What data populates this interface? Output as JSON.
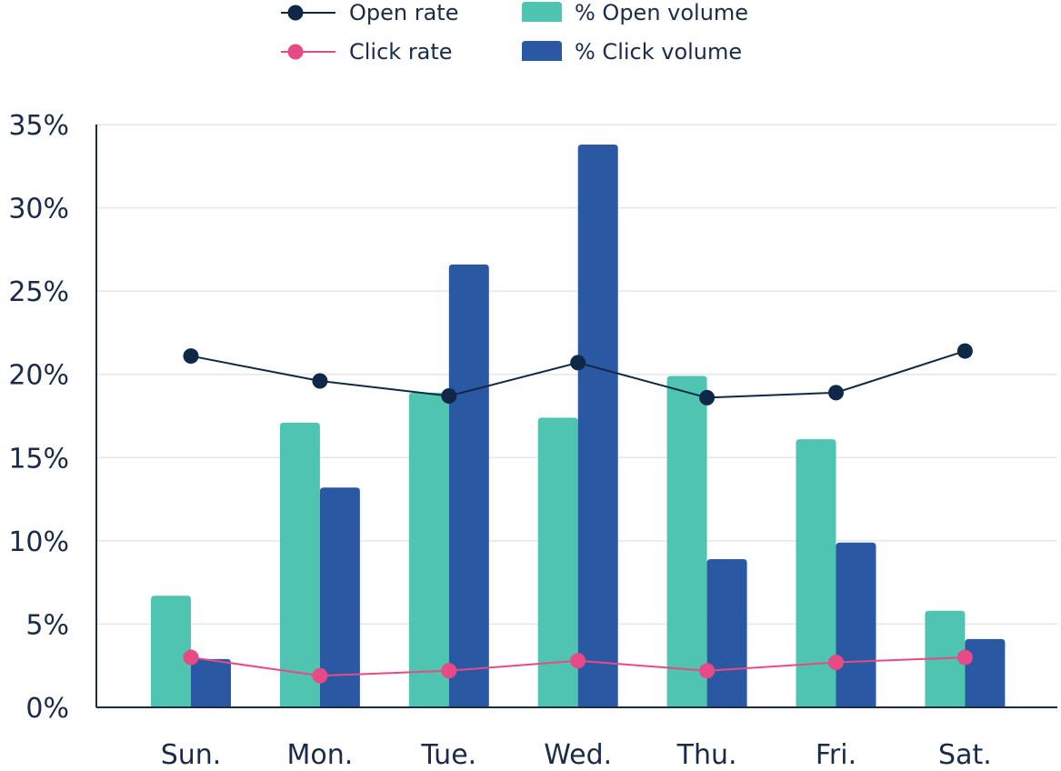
{
  "chart_data": {
    "type": "bar",
    "categories": [
      "Sun.",
      "Mon.",
      "Tue.",
      "Wed.",
      "Thu.",
      "Fri.",
      "Sat."
    ],
    "ylim": [
      0,
      35
    ],
    "yticks": [
      "0%",
      "5%",
      "10%",
      "15%",
      "20%",
      "25%",
      "30%",
      "35%"
    ],
    "grid": true,
    "legend_position": "top",
    "bar_series": [
      {
        "name": "% Open volume",
        "color": "#4fc4b0",
        "values": [
          6.7,
          17.1,
          18.9,
          17.4,
          19.9,
          16.1,
          5.8
        ]
      },
      {
        "name": "% Click volume",
        "color": "#2a58a2",
        "values": [
          2.9,
          13.2,
          26.6,
          33.8,
          8.9,
          9.9,
          4.1
        ]
      }
    ],
    "line_series": [
      {
        "name": "Open rate",
        "color": "#0f2847",
        "values": [
          21.1,
          19.6,
          18.7,
          20.7,
          18.6,
          18.9,
          21.4
        ]
      },
      {
        "name": "Click rate",
        "color": "#e84a86",
        "values": [
          3.0,
          1.9,
          2.2,
          2.8,
          2.2,
          2.7,
          3.0
        ]
      }
    ],
    "title": "",
    "xlabel": "",
    "ylabel": ""
  }
}
